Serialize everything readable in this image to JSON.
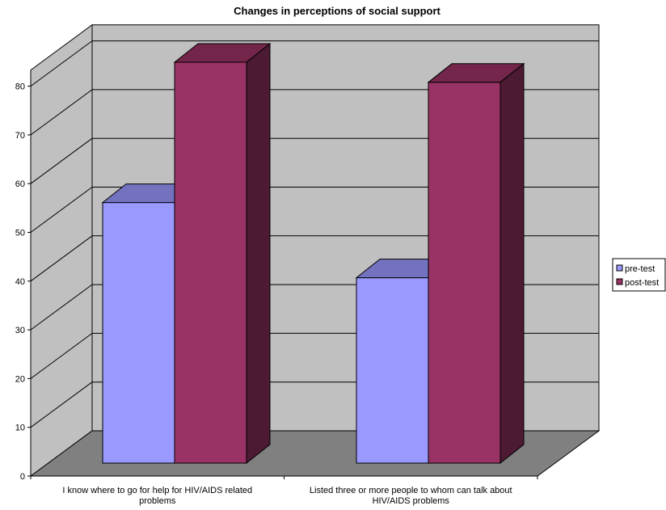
{
  "chart_data": {
    "type": "bar",
    "title": "Changes in perceptions of social support",
    "categories": [
      [
        "I know where to go for help for HIV/AIDS related",
        "problems"
      ],
      [
        "Listed three or more people to whom can talk about",
        "HIV/AIDS problems"
      ]
    ],
    "series": [
      {
        "name": "pre-test",
        "values": [
          52,
          37
        ],
        "color": "#9999ff",
        "top_color": "#7272bf",
        "side_color": "#4c4c80"
      },
      {
        "name": "post-test",
        "values": [
          80,
          76
        ],
        "color": "#993366",
        "top_color": "#732649",
        "side_color": "#4c1a33"
      }
    ],
    "ylim": [
      0,
      80
    ],
    "yticks": [
      0,
      10,
      20,
      30,
      40,
      50,
      60,
      70,
      80
    ],
    "xlabel": "",
    "ylabel": "",
    "grid": true,
    "legend_position": "right",
    "style": "3d-column",
    "wall_color": "#c0c0c0",
    "floor_color": "#808080"
  }
}
